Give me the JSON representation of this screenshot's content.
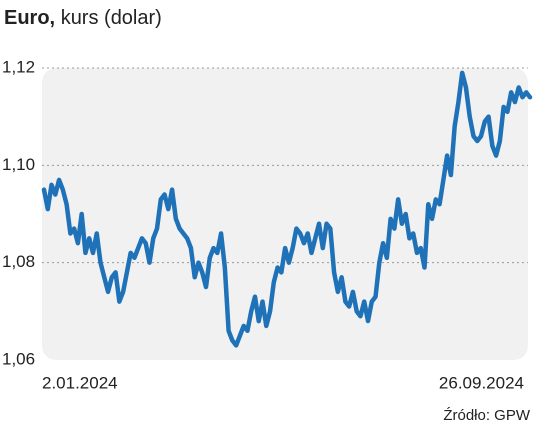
{
  "chart_data": {
    "type": "line",
    "title": "Euro,",
    "subtitle": "kurs (dolar)",
    "source": "Źródło: GPW",
    "categories": [
      "2.01.2024",
      null,
      null,
      null,
      null,
      null,
      null,
      null,
      null,
      null,
      null,
      null,
      null,
      null,
      null,
      null,
      null,
      null,
      null,
      null,
      null,
      null,
      null,
      null,
      null,
      null,
      null,
      null,
      null,
      null,
      null,
      null,
      null,
      null,
      null,
      null,
      null,
      null,
      null,
      null,
      null,
      null,
      null,
      null,
      null,
      null,
      null,
      null,
      null,
      null,
      null,
      null,
      null,
      null,
      null,
      null,
      null,
      null,
      null,
      null,
      null,
      null,
      null,
      null,
      null,
      null,
      null,
      null,
      null,
      null,
      null,
      null,
      null,
      null,
      null,
      null,
      null,
      null,
      null,
      null,
      null,
      null,
      null,
      null,
      null,
      null,
      null,
      null,
      null,
      null,
      null,
      null,
      null,
      null,
      null,
      null,
      null,
      null,
      null,
      null,
      null,
      null,
      null,
      null,
      null,
      null,
      null,
      null,
      null,
      null,
      null,
      null,
      null,
      null,
      null,
      null,
      null,
      null,
      null,
      null,
      null,
      null,
      null,
      null,
      null,
      null,
      null,
      null,
      null,
      "26.09.2024"
    ],
    "values": [
      1.095,
      1.091,
      1.096,
      1.094,
      1.097,
      1.095,
      1.092,
      1.086,
      1.087,
      1.084,
      1.09,
      1.082,
      1.085,
      1.082,
      1.086,
      1.08,
      1.077,
      1.074,
      1.077,
      1.078,
      1.072,
      1.074,
      1.078,
      1.082,
      1.081,
      1.083,
      1.085,
      1.084,
      1.08,
      1.085,
      1.087,
      1.093,
      1.094,
      1.091,
      1.095,
      1.089,
      1.087,
      1.086,
      1.085,
      1.083,
      1.077,
      1.08,
      1.078,
      1.075,
      1.081,
      1.083,
      1.082,
      1.086,
      1.079,
      1.066,
      1.064,
      1.063,
      1.065,
      1.067,
      1.066,
      1.07,
      1.073,
      1.068,
      1.072,
      1.067,
      1.07,
      1.076,
      1.079,
      1.078,
      1.083,
      1.08,
      1.083,
      1.087,
      1.086,
      1.084,
      1.086,
      1.082,
      1.085,
      1.088,
      1.083,
      1.088,
      1.087,
      1.078,
      1.074,
      1.077,
      1.072,
      1.071,
      1.074,
      1.07,
      1.069,
      1.072,
      1.068,
      1.072,
      1.073,
      1.08,
      1.084,
      1.081,
      1.089,
      1.087,
      1.093,
      1.088,
      1.09,
      1.085,
      1.086,
      1.082,
      1.083,
      1.079,
      1.092,
      1.089,
      1.093,
      1.092,
      1.097,
      1.102,
      1.098,
      1.108,
      1.113,
      1.119,
      1.116,
      1.11,
      1.106,
      1.105,
      1.106,
      1.109,
      1.11,
      1.104,
      1.102,
      1.105,
      1.112,
      1.111,
      1.115,
      1.113,
      1.116,
      1.114,
      1.115,
      1.114
    ],
    "color": "#1f72b8",
    "ylim": [
      1.06,
      1.12
    ],
    "yticks": [
      {
        "value": 1.06,
        "label": "1,06"
      },
      {
        "value": 1.08,
        "label": "1,08"
      },
      {
        "value": 1.1,
        "label": "1,10"
      },
      {
        "value": 1.12,
        "label": "1,12"
      }
    ],
    "grid": true
  }
}
